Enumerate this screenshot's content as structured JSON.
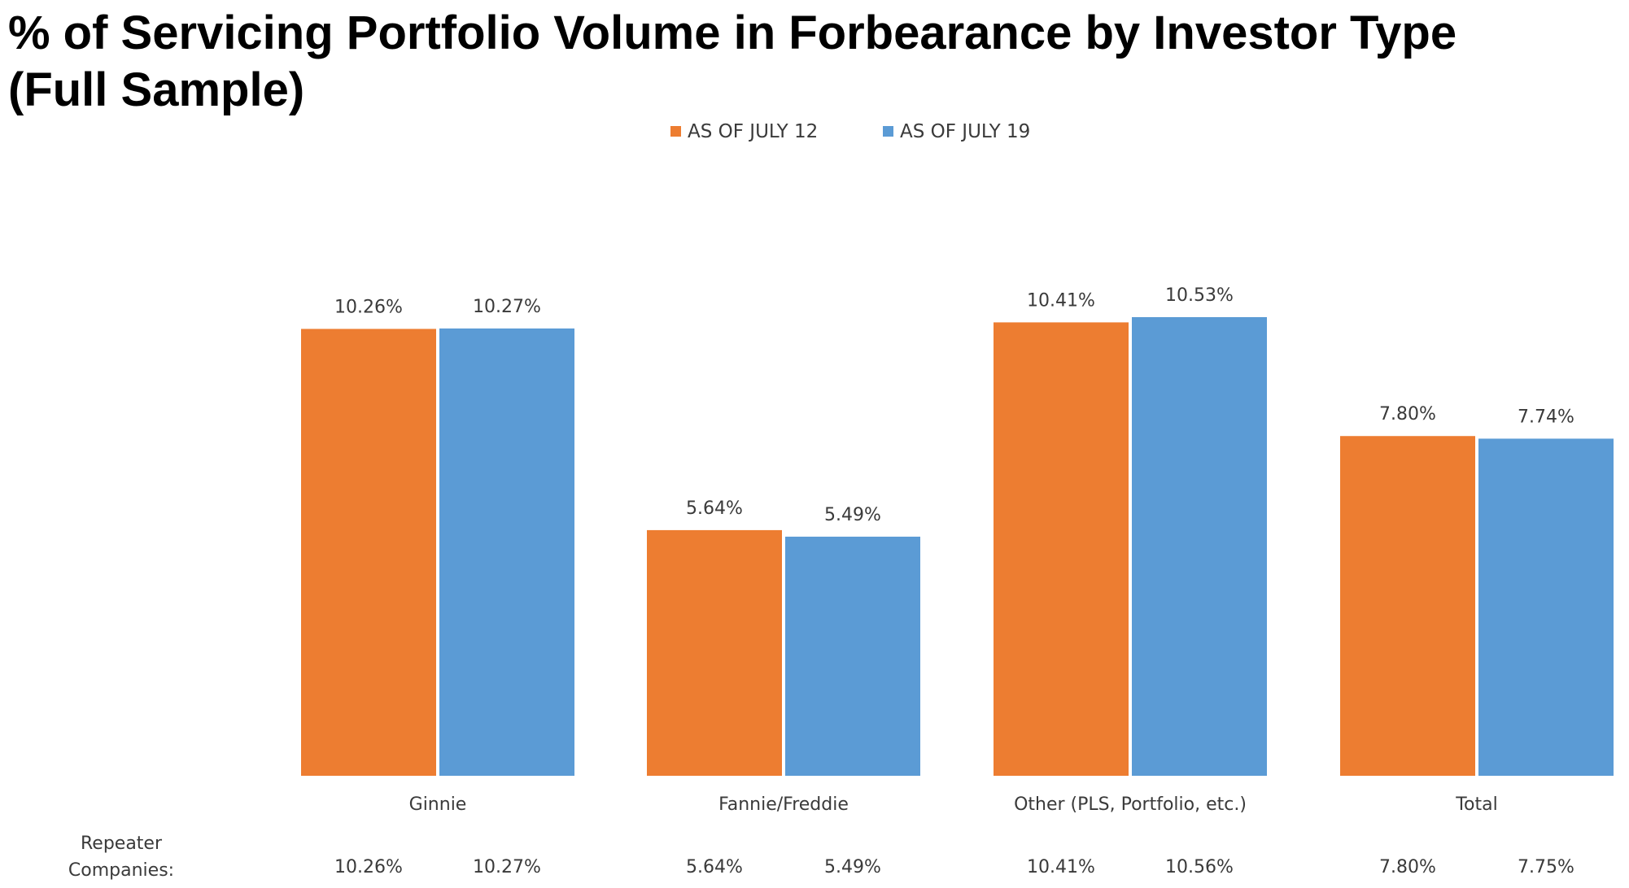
{
  "title_line1": "% of Servicing Portfolio Volume in Forbearance by Investor Type",
  "title_line2": "(Full Sample)",
  "colors": {
    "series1": "#ED7D31",
    "series2": "#5B9BD5",
    "text": "#3a3a3a"
  },
  "chart_data": {
    "type": "bar",
    "title": "% of Servicing Portfolio Volume in Forbearance by Investor Type (Full Sample)",
    "categories": [
      "Ginnie",
      "Fannie/Freddie",
      "Other (PLS, Portfolio, etc.)",
      "Total"
    ],
    "series": [
      {
        "name": "AS OF JULY 12",
        "values": [
          10.26,
          5.64,
          10.41,
          7.8
        ],
        "labels": [
          "10.26%",
          "5.64%",
          "10.41%",
          "7.80%"
        ]
      },
      {
        "name": "AS OF JULY 19",
        "values": [
          10.27,
          5.49,
          10.53,
          7.74
        ],
        "labels": [
          "10.27%",
          "5.49%",
          "10.53%",
          "7.74%"
        ]
      }
    ],
    "ylim": [
      0,
      10.53
    ],
    "grid": false,
    "legend_position": "top-center",
    "repeater": {
      "label_line1": "Repeater",
      "label_line2": "Companies:",
      "values": [
        [
          "10.26%",
          "10.27%"
        ],
        [
          "5.64%",
          "5.49%"
        ],
        [
          "10.41%",
          "10.56%"
        ],
        [
          "7.80%",
          "7.75%"
        ]
      ]
    }
  }
}
